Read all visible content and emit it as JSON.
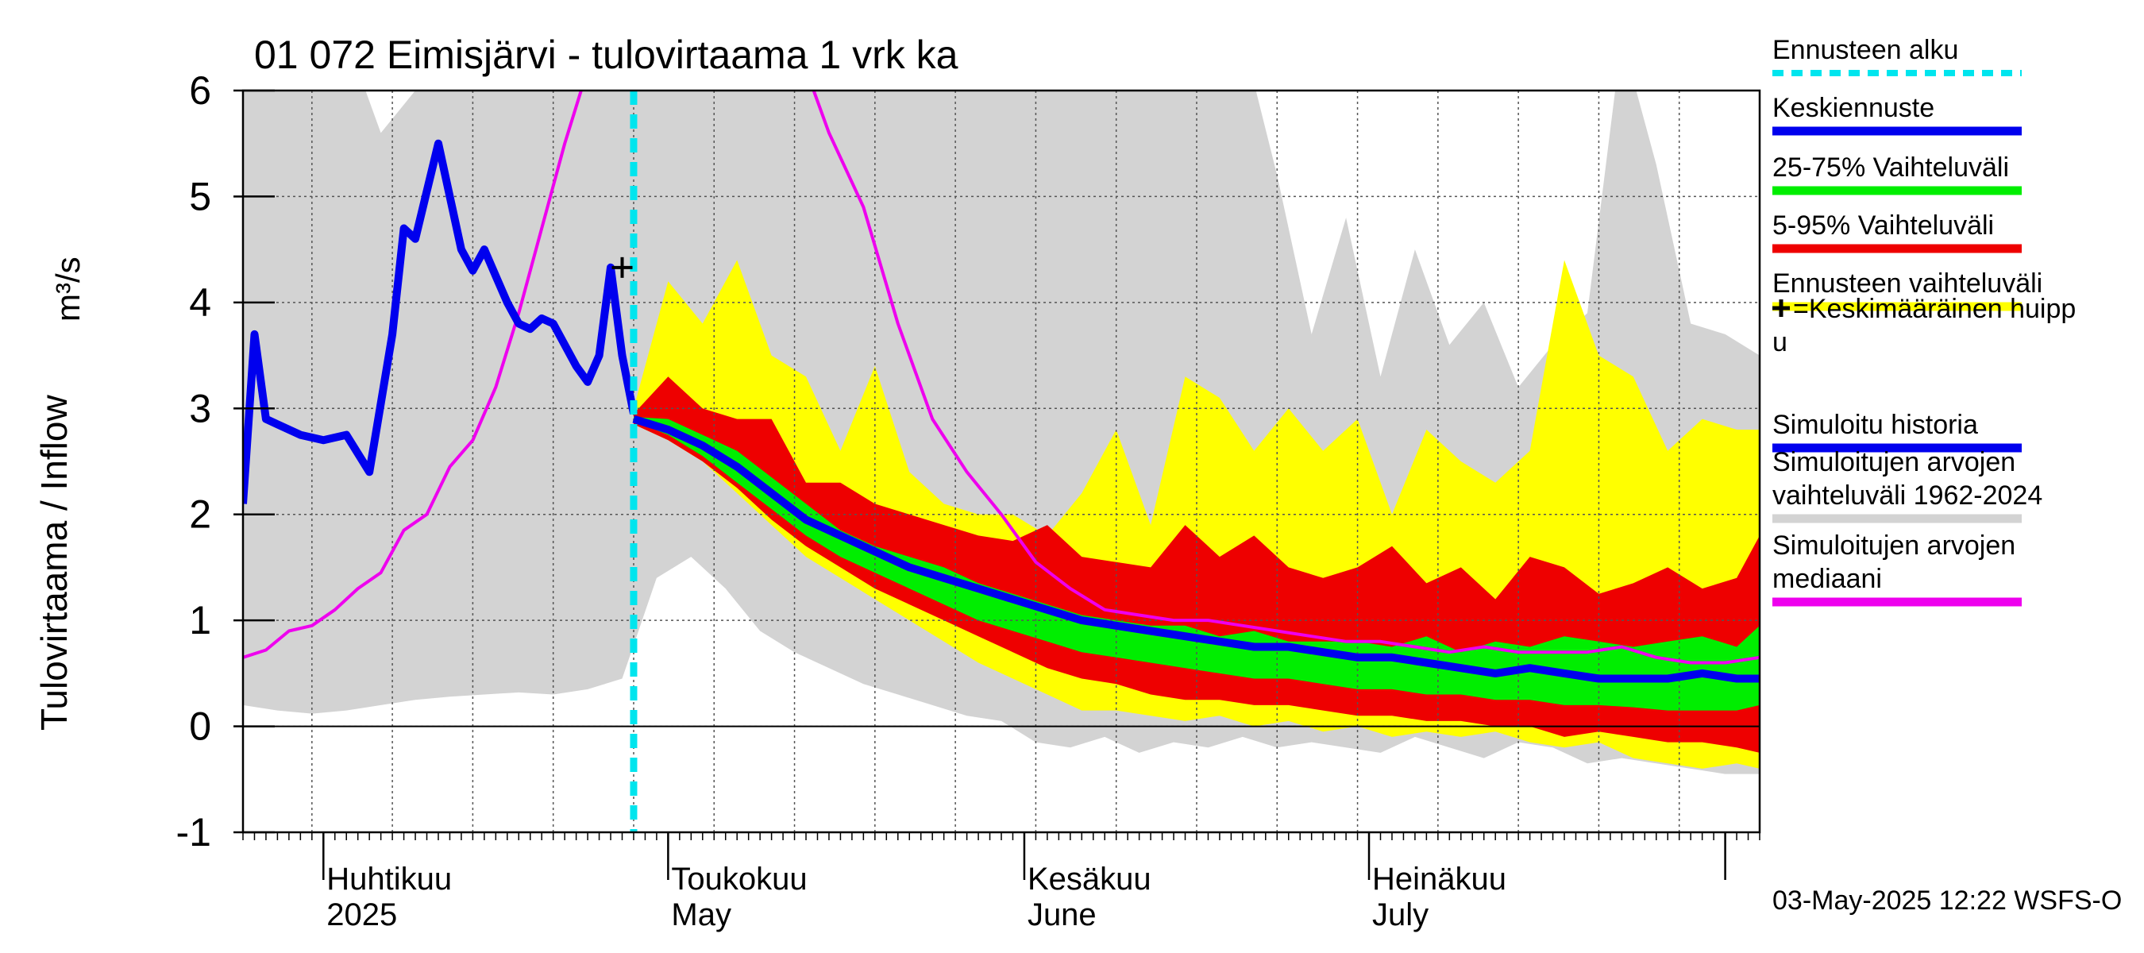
{
  "chart_data": {
    "type": "area",
    "title": "01 072 Eimisjärvi - tulovirtaama 1 vrk ka",
    "ylabel": "Tulovirtaama / Inflow",
    "yunit": "m³/s",
    "ylim": [
      -1,
      6
    ],
    "yticks": [
      "-1",
      "0",
      "1",
      "2",
      "3",
      "4",
      "5",
      "6"
    ],
    "xlim": [
      "2025-03-25",
      "2025-08-04"
    ],
    "grid": true,
    "legend_position": "right",
    "timestamp": "03-May-2025 12:22 WSFS-O",
    "month_labels": [
      {
        "date": "2025-04-01",
        "fi": "Huhtikuu",
        "en": "2025"
      },
      {
        "date": "2025-05-01",
        "fi": "Toukokuu",
        "en": "May"
      },
      {
        "date": "2025-06-01",
        "fi": "Kesäkuu",
        "en": "June"
      },
      {
        "date": "2025-07-01",
        "fi": "Heinäkuu",
        "en": "July"
      }
    ],
    "forecast_start": "2025-04-28",
    "mean_peak": {
      "date": "2025-04-27",
      "value": 4.33
    },
    "legend": [
      {
        "label": "Ennusteen alku",
        "color": "#00e5ee",
        "style": "dashed"
      },
      {
        "label": "Keskiennuste",
        "color": "#0000ee",
        "style": "line"
      },
      {
        "label": "25-75% Vaihteluväli",
        "color": "#00ee00",
        "style": "band"
      },
      {
        "label": "5-95% Vaihteluväli",
        "color": "#ee0000",
        "style": "band"
      },
      {
        "label": "Ennusteen vaihteluväli",
        "color": "#ffff00",
        "style": "band"
      },
      {
        "label": "+=Keskimääräinen huippu",
        "color": "#000000",
        "style": "marker"
      },
      {
        "label": "Simuloitu historia",
        "color": "#0000ee",
        "style": "line"
      },
      {
        "label": "Simuloitujen arvojen vaihteluväli 1962-2024",
        "color": "#d3d3d3",
        "style": "band"
      },
      {
        "label": "Simuloitujen arvojen mediaani",
        "color": "#ee00ee",
        "style": "line"
      }
    ],
    "series": [
      {
        "name": "Simuloitujen arvojen vaihteluväli 1962-2024",
        "kind": "band",
        "color": "#d3d3d3",
        "x": [
          "2025-03-25",
          "2025-03-28",
          "2025-03-31",
          "2025-04-03",
          "2025-04-06",
          "2025-04-09",
          "2025-04-12",
          "2025-04-15",
          "2025-04-18",
          "2025-04-21",
          "2025-04-24",
          "2025-04-27",
          "2025-04-30",
          "2025-05-03",
          "2025-05-06",
          "2025-05-09",
          "2025-05-12",
          "2025-05-15",
          "2025-05-18",
          "2025-05-21",
          "2025-05-24",
          "2025-05-27",
          "2025-05-30",
          "2025-06-02",
          "2025-06-05",
          "2025-06-08",
          "2025-06-11",
          "2025-06-14",
          "2025-06-17",
          "2025-06-20",
          "2025-06-23",
          "2025-06-26",
          "2025-06-29",
          "2025-07-02",
          "2025-07-05",
          "2025-07-08",
          "2025-07-11",
          "2025-07-14",
          "2025-07-17",
          "2025-07-20",
          "2025-07-23",
          "2025-07-26",
          "2025-07-29",
          "2025-08-01",
          "2025-08-04"
        ],
        "low": [
          0.2,
          0.15,
          0.12,
          0.15,
          0.2,
          0.25,
          0.28,
          0.3,
          0.32,
          0.3,
          0.35,
          0.45,
          1.4,
          1.6,
          1.3,
          0.9,
          0.7,
          0.55,
          0.4,
          0.3,
          0.2,
          0.1,
          0.05,
          -0.15,
          -0.2,
          -0.1,
          -0.25,
          -0.15,
          -0.2,
          -0.1,
          -0.2,
          -0.15,
          -0.2,
          -0.25,
          -0.1,
          -0.2,
          -0.3,
          -0.15,
          -0.2,
          -0.35,
          -0.3,
          -0.35,
          -0.4,
          -0.45,
          -0.45
        ],
        "high": [
          6.5,
          6.5,
          6.5,
          6.5,
          5.6,
          6.0,
          6.5,
          6.5,
          6.5,
          6.5,
          6.5,
          6.5,
          6.5,
          6.5,
          6.5,
          6.5,
          6.5,
          6.5,
          6.5,
          6.5,
          6.5,
          6.5,
          6.5,
          6.5,
          6.5,
          6.5,
          6.5,
          6.5,
          6.5,
          6.5,
          5.2,
          3.7,
          4.8,
          3.3,
          4.5,
          3.6,
          4.0,
          3.2,
          3.6,
          3.9,
          6.5,
          5.3,
          3.8,
          3.7,
          3.5
        ]
      },
      {
        "name": "Ennusteen vaihteluväli",
        "kind": "band",
        "color": "#ffff00",
        "x": [
          "2025-04-28",
          "2025-05-01",
          "2025-05-04",
          "2025-05-07",
          "2025-05-10",
          "2025-05-13",
          "2025-05-16",
          "2025-05-19",
          "2025-05-22",
          "2025-05-25",
          "2025-05-28",
          "2025-05-31",
          "2025-06-03",
          "2025-06-06",
          "2025-06-09",
          "2025-06-12",
          "2025-06-15",
          "2025-06-18",
          "2025-06-21",
          "2025-06-24",
          "2025-06-27",
          "2025-06-30",
          "2025-07-03",
          "2025-07-06",
          "2025-07-09",
          "2025-07-12",
          "2025-07-15",
          "2025-07-18",
          "2025-07-21",
          "2025-07-24",
          "2025-07-27",
          "2025-07-30",
          "2025-08-02",
          "2025-08-04"
        ],
        "low": [
          2.85,
          2.7,
          2.5,
          2.2,
          1.9,
          1.6,
          1.4,
          1.2,
          1.0,
          0.8,
          0.6,
          0.45,
          0.3,
          0.15,
          0.15,
          0.1,
          0.05,
          0.1,
          0.0,
          0.05,
          -0.05,
          0.0,
          -0.1,
          -0.05,
          -0.1,
          -0.05,
          -0.15,
          -0.2,
          -0.15,
          -0.3,
          -0.35,
          -0.4,
          -0.35,
          -0.4
        ],
        "high": [
          3.0,
          4.2,
          3.8,
          4.4,
          3.5,
          3.3,
          2.6,
          3.4,
          2.4,
          2.1,
          2.0,
          2.0,
          1.8,
          2.2,
          2.8,
          1.9,
          3.3,
          3.1,
          2.6,
          3.0,
          2.6,
          2.9,
          2.0,
          2.8,
          2.5,
          2.3,
          2.6,
          4.4,
          3.5,
          3.3,
          2.6,
          2.9,
          2.8,
          2.8
        ]
      },
      {
        "name": "5-95% Vaihteluväli",
        "kind": "band",
        "color": "#ee0000",
        "x": [
          "2025-04-28",
          "2025-05-01",
          "2025-05-04",
          "2025-05-07",
          "2025-05-10",
          "2025-05-13",
          "2025-05-16",
          "2025-05-19",
          "2025-05-22",
          "2025-05-25",
          "2025-05-28",
          "2025-05-31",
          "2025-06-03",
          "2025-06-06",
          "2025-06-09",
          "2025-06-12",
          "2025-06-15",
          "2025-06-18",
          "2025-06-21",
          "2025-06-24",
          "2025-06-27",
          "2025-06-30",
          "2025-07-03",
          "2025-07-06",
          "2025-07-09",
          "2025-07-12",
          "2025-07-15",
          "2025-07-18",
          "2025-07-21",
          "2025-07-24",
          "2025-07-27",
          "2025-07-30",
          "2025-08-02",
          "2025-08-04"
        ],
        "low": [
          2.85,
          2.7,
          2.5,
          2.25,
          1.95,
          1.7,
          1.5,
          1.3,
          1.15,
          1.0,
          0.85,
          0.7,
          0.55,
          0.45,
          0.4,
          0.3,
          0.25,
          0.25,
          0.2,
          0.2,
          0.15,
          0.1,
          0.1,
          0.05,
          0.05,
          0.0,
          0.0,
          -0.1,
          -0.05,
          -0.1,
          -0.15,
          -0.15,
          -0.2,
          -0.25
        ],
        "high": [
          2.95,
          3.3,
          3.0,
          2.9,
          2.9,
          2.3,
          2.3,
          2.1,
          2.0,
          1.9,
          1.8,
          1.75,
          1.9,
          1.6,
          1.55,
          1.5,
          1.9,
          1.6,
          1.8,
          1.5,
          1.4,
          1.5,
          1.7,
          1.35,
          1.5,
          1.2,
          1.6,
          1.5,
          1.25,
          1.35,
          1.5,
          1.3,
          1.4,
          1.8
        ]
      },
      {
        "name": "25-75% Vaihteluväli",
        "kind": "band",
        "color": "#00ee00",
        "x": [
          "2025-04-28",
          "2025-05-01",
          "2025-05-04",
          "2025-05-07",
          "2025-05-10",
          "2025-05-13",
          "2025-05-16",
          "2025-05-19",
          "2025-05-22",
          "2025-05-25",
          "2025-05-28",
          "2025-05-31",
          "2025-06-03",
          "2025-06-06",
          "2025-06-09",
          "2025-06-12",
          "2025-06-15",
          "2025-06-18",
          "2025-06-21",
          "2025-06-24",
          "2025-06-27",
          "2025-06-30",
          "2025-07-03",
          "2025-07-06",
          "2025-07-09",
          "2025-07-12",
          "2025-07-15",
          "2025-07-18",
          "2025-07-21",
          "2025-07-24",
          "2025-07-27",
          "2025-07-30",
          "2025-08-02",
          "2025-08-04"
        ],
        "low": [
          2.88,
          2.75,
          2.55,
          2.3,
          2.05,
          1.8,
          1.6,
          1.45,
          1.3,
          1.15,
          1.0,
          0.9,
          0.8,
          0.7,
          0.65,
          0.6,
          0.55,
          0.5,
          0.45,
          0.45,
          0.4,
          0.35,
          0.35,
          0.3,
          0.3,
          0.25,
          0.25,
          0.2,
          0.2,
          0.18,
          0.15,
          0.15,
          0.15,
          0.2
        ],
        "high": [
          2.92,
          2.9,
          2.75,
          2.6,
          2.35,
          2.1,
          1.85,
          1.7,
          1.6,
          1.5,
          1.35,
          1.25,
          1.15,
          1.05,
          1.0,
          0.95,
          0.95,
          0.85,
          0.9,
          0.8,
          0.8,
          0.8,
          0.75,
          0.85,
          0.7,
          0.8,
          0.75,
          0.85,
          0.8,
          0.75,
          0.8,
          0.85,
          0.75,
          0.95
        ]
      },
      {
        "name": "Simuloitujen arvojen mediaani",
        "kind": "line",
        "color": "#ee00ee",
        "x": [
          "2025-03-25",
          "2025-03-27",
          "2025-03-29",
          "2025-03-31",
          "2025-04-02",
          "2025-04-04",
          "2025-04-06",
          "2025-04-08",
          "2025-04-10",
          "2025-04-12",
          "2025-04-14",
          "2025-04-16",
          "2025-04-18",
          "2025-04-20",
          "2025-04-22",
          "2025-04-24",
          "2025-05-13",
          "2025-05-15",
          "2025-05-18",
          "2025-05-21",
          "2025-05-24",
          "2025-05-27",
          "2025-05-30",
          "2025-06-02",
          "2025-06-05",
          "2025-06-08",
          "2025-06-11",
          "2025-06-14",
          "2025-06-17",
          "2025-06-20",
          "2025-06-23",
          "2025-06-26",
          "2025-06-29",
          "2025-07-02",
          "2025-07-05",
          "2025-07-08",
          "2025-07-11",
          "2025-07-14",
          "2025-07-17",
          "2025-07-20",
          "2025-07-23",
          "2025-07-26",
          "2025-07-29",
          "2025-08-01",
          "2025-08-04"
        ],
        "values": [
          0.65,
          0.72,
          0.9,
          0.95,
          1.1,
          1.3,
          1.45,
          1.85,
          2.0,
          2.45,
          2.7,
          3.2,
          3.9,
          4.7,
          5.5,
          6.2,
          6.2,
          5.6,
          4.9,
          3.8,
          2.9,
          2.4,
          2.0,
          1.55,
          1.3,
          1.1,
          1.05,
          1.0,
          1.0,
          0.95,
          0.9,
          0.85,
          0.8,
          0.8,
          0.75,
          0.7,
          0.75,
          0.7,
          0.7,
          0.7,
          0.75,
          0.65,
          0.6,
          0.6,
          0.65
        ]
      },
      {
        "name": "Simuloitu historia",
        "kind": "line",
        "color": "#0000ee",
        "x": [
          "2025-03-25",
          "2025-03-26",
          "2025-03-27",
          "2025-03-28",
          "2025-03-30",
          "2025-04-01",
          "2025-04-03",
          "2025-04-05",
          "2025-04-07",
          "2025-04-08",
          "2025-04-09",
          "2025-04-11",
          "2025-04-13",
          "2025-04-14",
          "2025-04-15",
          "2025-04-16",
          "2025-04-17",
          "2025-04-18",
          "2025-04-19",
          "2025-04-20",
          "2025-04-21",
          "2025-04-22",
          "2025-04-23",
          "2025-04-24",
          "2025-04-25",
          "2025-04-26",
          "2025-04-27",
          "2025-04-28"
        ],
        "values": [
          2.1,
          3.7,
          2.9,
          2.85,
          2.75,
          2.7,
          2.75,
          2.4,
          3.7,
          4.7,
          4.6,
          5.5,
          4.5,
          4.3,
          4.5,
          4.25,
          4.0,
          3.8,
          3.75,
          3.85,
          3.8,
          3.6,
          3.4,
          3.25,
          3.5,
          4.33,
          3.5,
          2.95
        ]
      },
      {
        "name": "Keskiennuste",
        "kind": "line",
        "color": "#0000ee",
        "x": [
          "2025-04-28",
          "2025-05-01",
          "2025-05-04",
          "2025-05-07",
          "2025-05-10",
          "2025-05-13",
          "2025-05-16",
          "2025-05-19",
          "2025-05-22",
          "2025-05-25",
          "2025-05-28",
          "2025-05-31",
          "2025-06-03",
          "2025-06-06",
          "2025-06-09",
          "2025-06-12",
          "2025-06-15",
          "2025-06-18",
          "2025-06-21",
          "2025-06-24",
          "2025-06-27",
          "2025-06-30",
          "2025-07-03",
          "2025-07-06",
          "2025-07-09",
          "2025-07-12",
          "2025-07-15",
          "2025-07-18",
          "2025-07-21",
          "2025-07-24",
          "2025-07-27",
          "2025-07-30",
          "2025-08-02",
          "2025-08-04"
        ],
        "values": [
          2.9,
          2.8,
          2.65,
          2.45,
          2.2,
          1.95,
          1.8,
          1.65,
          1.5,
          1.4,
          1.3,
          1.2,
          1.1,
          1.0,
          0.95,
          0.9,
          0.85,
          0.8,
          0.75,
          0.75,
          0.7,
          0.65,
          0.65,
          0.6,
          0.55,
          0.5,
          0.55,
          0.5,
          0.45,
          0.45,
          0.45,
          0.5,
          0.45,
          0.45
        ]
      }
    ]
  }
}
